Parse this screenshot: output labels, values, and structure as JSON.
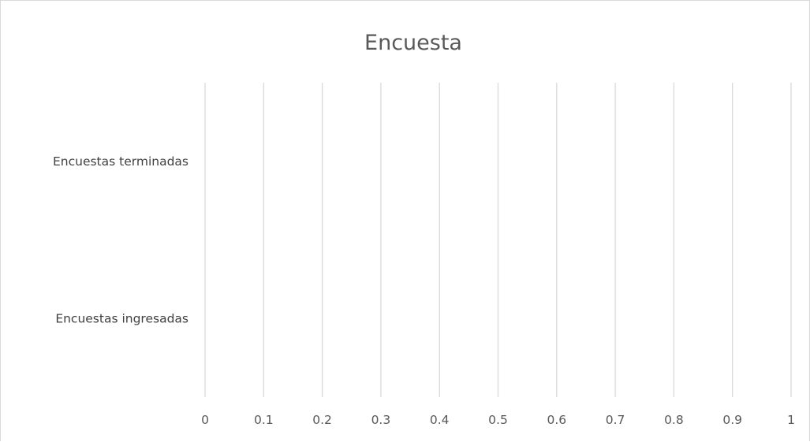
{
  "chart_data": {
    "type": "bar",
    "orientation": "horizontal",
    "title": "Encuesta",
    "categories": [
      "Encuestas terminadas",
      "Encuestas ingresadas"
    ],
    "series": [
      {
        "values": [
          0,
          0
        ]
      }
    ],
    "xlim": [
      0,
      1
    ],
    "xticks": [
      "0",
      "0.1",
      "0.2",
      "0.3",
      "0.4",
      "0.5",
      "0.6",
      "0.7",
      "0.8",
      "0.9",
      "1"
    ],
    "grid": true,
    "legend": "none",
    "colors": {
      "gridline": "#d9d9d9",
      "title": "#595959",
      "label": "#404040"
    }
  }
}
